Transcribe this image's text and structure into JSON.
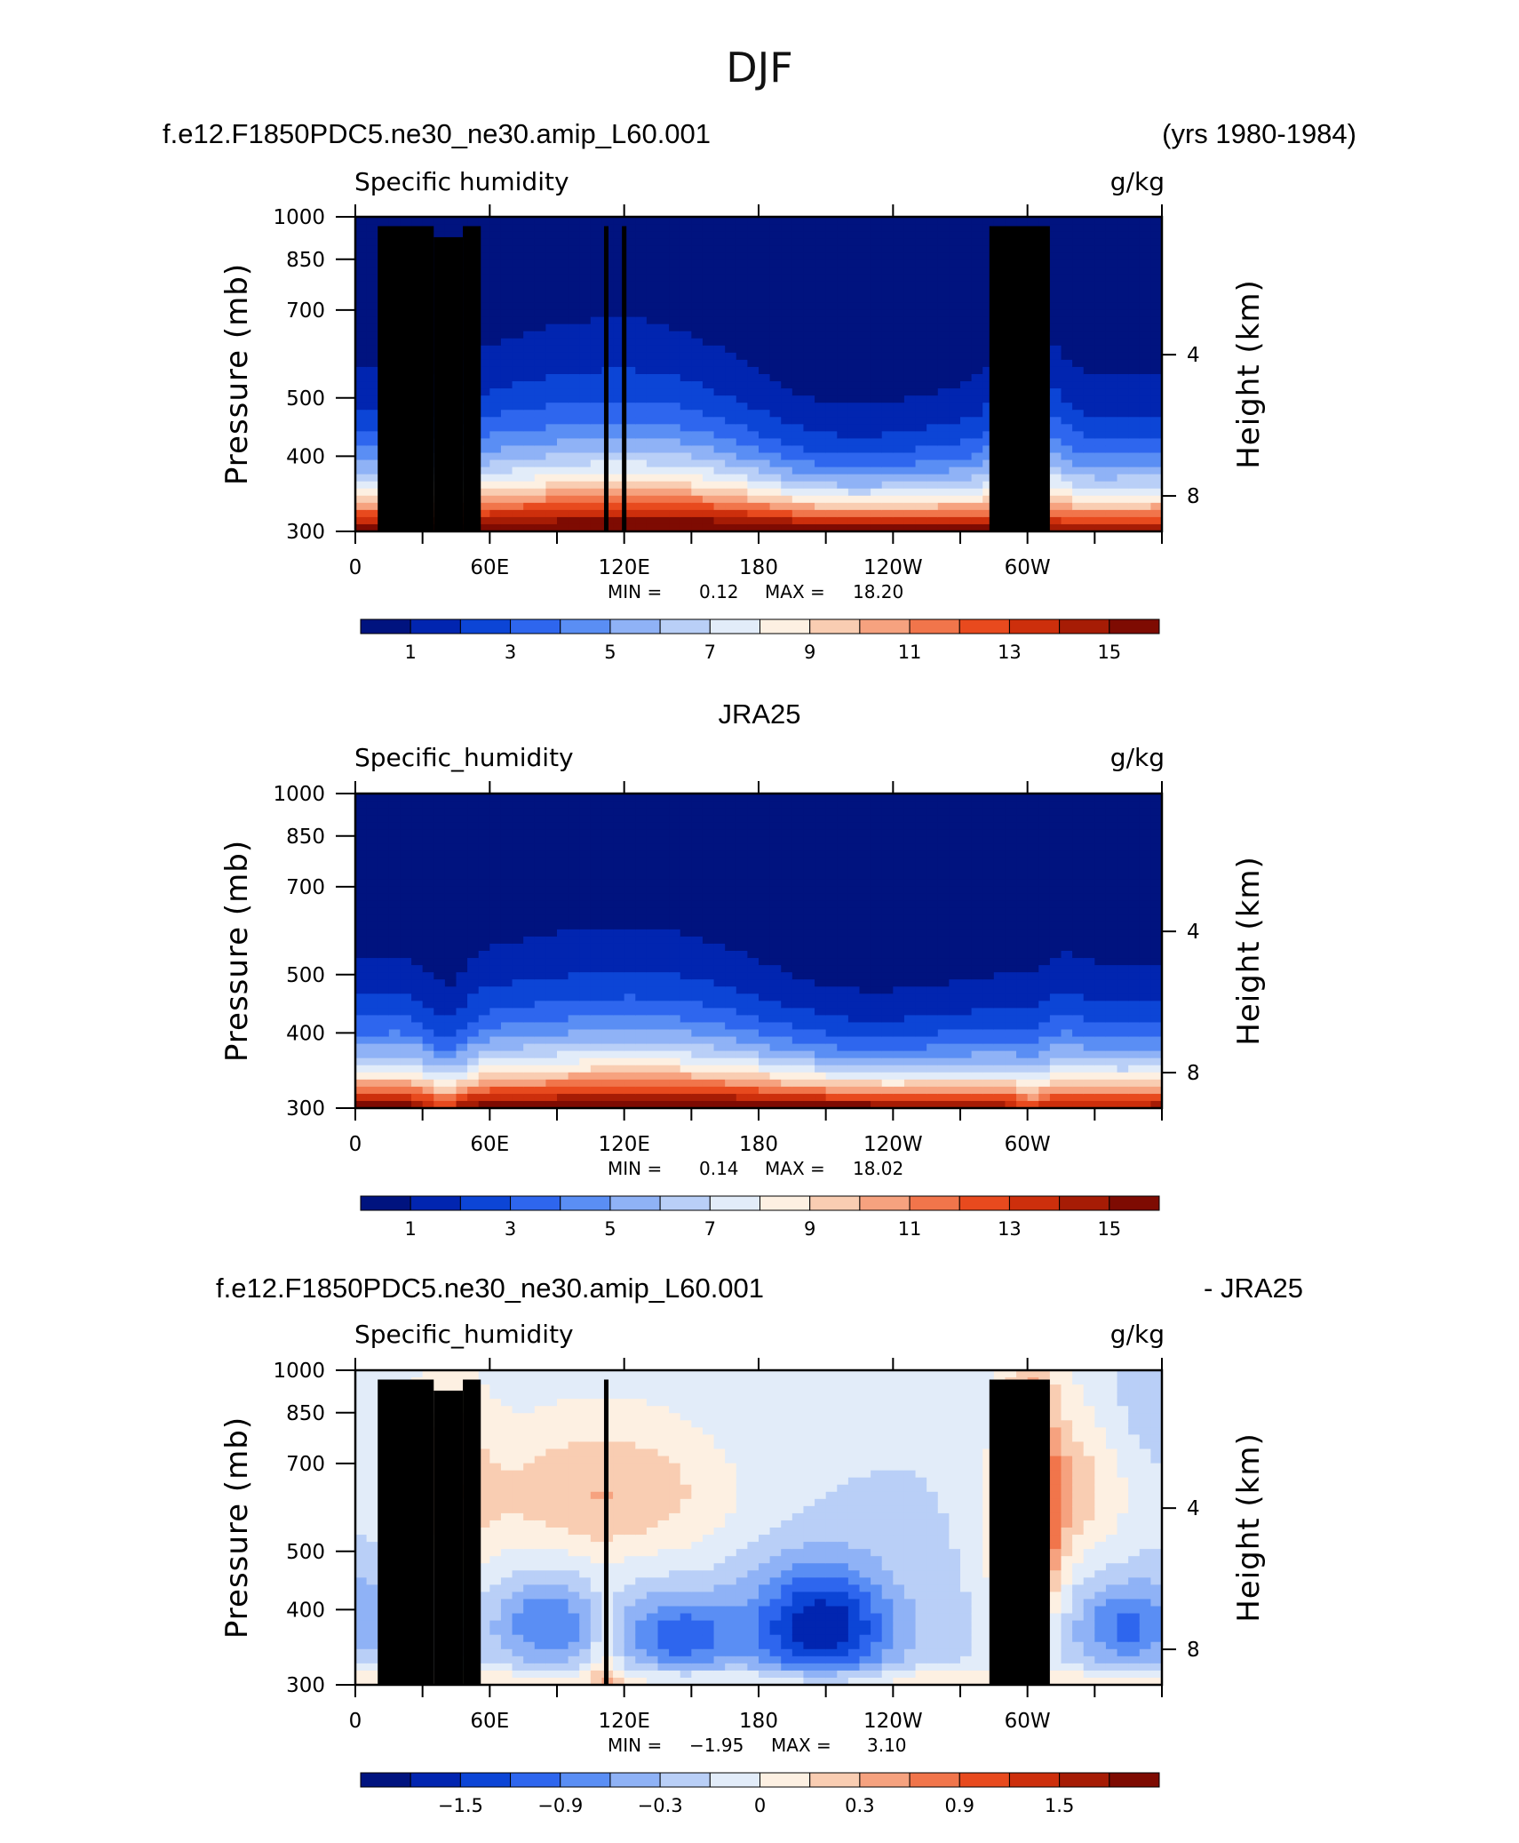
{
  "figure": {
    "title": "DJF"
  },
  "colors": {
    "frame": "#000000",
    "land": "#000000",
    "palette": [
      "#00137f",
      "#0125b0",
      "#0c45d6",
      "#2e66ee",
      "#5a8ef4",
      "#8fb2f6",
      "#b9cff7",
      "#e2ecf9",
      "#fdf0e2",
      "#f9cdb2",
      "#f6a27f",
      "#f1754b",
      "#e84a1e",
      "#cd2f0c",
      "#a61c05",
      "#7e0b02"
    ]
  },
  "chart_data": [
    {
      "type": "heatmap",
      "header_left": "f.e12.F1850PDC5.ne30_ne30.amip_L60.001",
      "header_right": "(yrs 1980-1984)",
      "label_left": "Specific humidity",
      "label_right": "g/kg",
      "ylabel": "Pressure (mb)",
      "y2label": "Height (km)",
      "x_ticks": [
        "0",
        "60E",
        "120E",
        "180",
        "120W",
        "60W"
      ],
      "y_ticks": [
        "300",
        "400",
        "500",
        "700",
        "850",
        "1000"
      ],
      "y_tick_values": [
        300,
        400,
        500,
        700,
        850,
        1000
      ],
      "y2_ticks": [
        "8",
        "4"
      ],
      "y2_tick_values": [
        8,
        4
      ],
      "xlim": [
        0,
        360
      ],
      "ylim": [
        1000,
        300
      ],
      "stats": {
        "min_label": "MIN =",
        "min": "0.12",
        "max_label": "MAX =",
        "max": "18.20"
      },
      "colorbar": {
        "labels": [
          "1",
          "3",
          "5",
          "7",
          "9",
          "11",
          "13",
          "15"
        ]
      },
      "field": "model",
      "min": 0.12,
      "max": 18.2
    },
    {
      "type": "heatmap",
      "header_center": "JRA25",
      "label_left": "Specific_humidity",
      "label_right": "g/kg",
      "ylabel": "Pressure (mb)",
      "y2label": "Height (km)",
      "x_ticks": [
        "0",
        "60E",
        "120E",
        "180",
        "120W",
        "60W"
      ],
      "y_ticks": [
        "300",
        "400",
        "500",
        "700",
        "850",
        "1000"
      ],
      "y_tick_values": [
        300,
        400,
        500,
        700,
        850,
        1000
      ],
      "y2_ticks": [
        "8",
        "4"
      ],
      "y2_tick_values": [
        8,
        4
      ],
      "xlim": [
        0,
        360
      ],
      "ylim": [
        1000,
        300
      ],
      "stats": {
        "min_label": "MIN =",
        "min": "0.14",
        "max_label": "MAX =",
        "max": "18.02"
      },
      "colorbar": {
        "labels": [
          "1",
          "3",
          "5",
          "7",
          "9",
          "11",
          "13",
          "15"
        ]
      },
      "field": "obs",
      "min": 0.14,
      "max": 18.02
    },
    {
      "type": "heatmap",
      "header_left": "f.e12.F1850PDC5.ne30_ne30.amip_L60.001",
      "header_right": "- JRA25",
      "label_left": "Specific_humidity",
      "label_right": "g/kg",
      "ylabel": "Pressure (mb)",
      "y2label": "Height (km)",
      "x_ticks": [
        "0",
        "60E",
        "120E",
        "180",
        "120W",
        "60W"
      ],
      "y_ticks": [
        "300",
        "400",
        "500",
        "700",
        "850",
        "1000"
      ],
      "y_tick_values": [
        300,
        400,
        500,
        700,
        850,
        1000
      ],
      "y2_ticks": [
        "8",
        "4"
      ],
      "y2_tick_values": [
        8,
        4
      ],
      "xlim": [
        0,
        360
      ],
      "ylim": [
        1000,
        300
      ],
      "stats": {
        "min_label": "MIN =",
        "min": "−1.95",
        "max_label": "MAX =",
        "max": "3.10"
      },
      "colorbar": {
        "labels": [
          "−1.5",
          "−0.9",
          "−0.3",
          "0",
          "0.3",
          "0.9",
          "1.5"
        ]
      },
      "field": "diff",
      "min": -1.95,
      "max": 3.1
    }
  ]
}
